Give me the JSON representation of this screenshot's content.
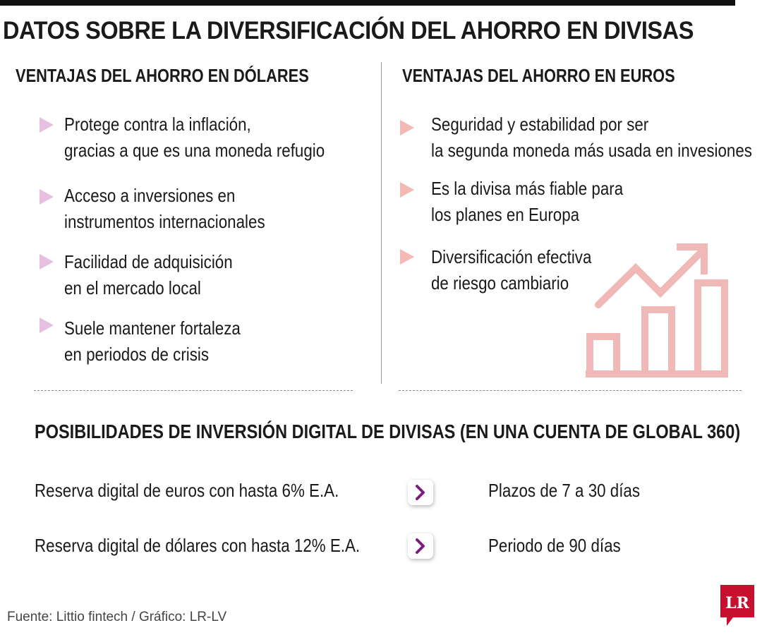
{
  "title": "DATOS SOBRE LA DIVERSIFICACIÓN DEL AHORRO EN DIVISAS",
  "dollars": {
    "heading": "VENTAJAS DEL AHORRO EN DÓLARES",
    "items": [
      {
        "line1": "Protege contra la inflación,",
        "line2": "gracias a que es una moneda refugio"
      },
      {
        "line1": "Acceso a inversiones en",
        "line2": "instrumentos internacionales"
      },
      {
        "line1": "Facilidad de adquisición",
        "line2": "en el mercado local"
      },
      {
        "line1": "Suele mantener fortaleza",
        "line2": "en periodos de crisis"
      }
    ]
  },
  "euros": {
    "heading": "VENTAJAS DEL AHORRO EN EUROS",
    "items": [
      {
        "line1": "Seguridad y estabilidad por ser",
        "line2": "la segunda moneda más usada en invesiones"
      },
      {
        "line1": "Es la divisa más fiable para",
        "line2": "los planes en Europa"
      },
      {
        "line1": "Diversificación efectiva",
        "line2": "de riesgo cambiario"
      }
    ]
  },
  "digital": {
    "heading": "POSIBILIDADES DE INVERSIÓN DIGITAL DE DIVISAS (EN UNA CUENTA DE GLOBAL 360)",
    "rows": [
      {
        "offer": "Reserva digital de euros con hasta 6% E.A.",
        "term": "Plazos de 7 a 30 días"
      },
      {
        "offer": "Reserva digital de dólares con hasta 12% E.A.",
        "term": "Periodo de 90 días"
      }
    ]
  },
  "source": "Fuente: Littio fintech / Gráfico: LR-LV",
  "logo_text": "LR",
  "icons": {
    "bullet_left": "triangle-bullet-icon",
    "bullet_right": "triangle-bullet-icon",
    "chart": "growth-chart-icon",
    "arrow": "chevron-right-icon"
  },
  "colors": {
    "bullet_left": "#e7bfe1",
    "bullet_right": "#f4b8b5",
    "chart": "#f0b8b6",
    "arrow": "#7b1f7a",
    "logo": "#c8102e"
  }
}
